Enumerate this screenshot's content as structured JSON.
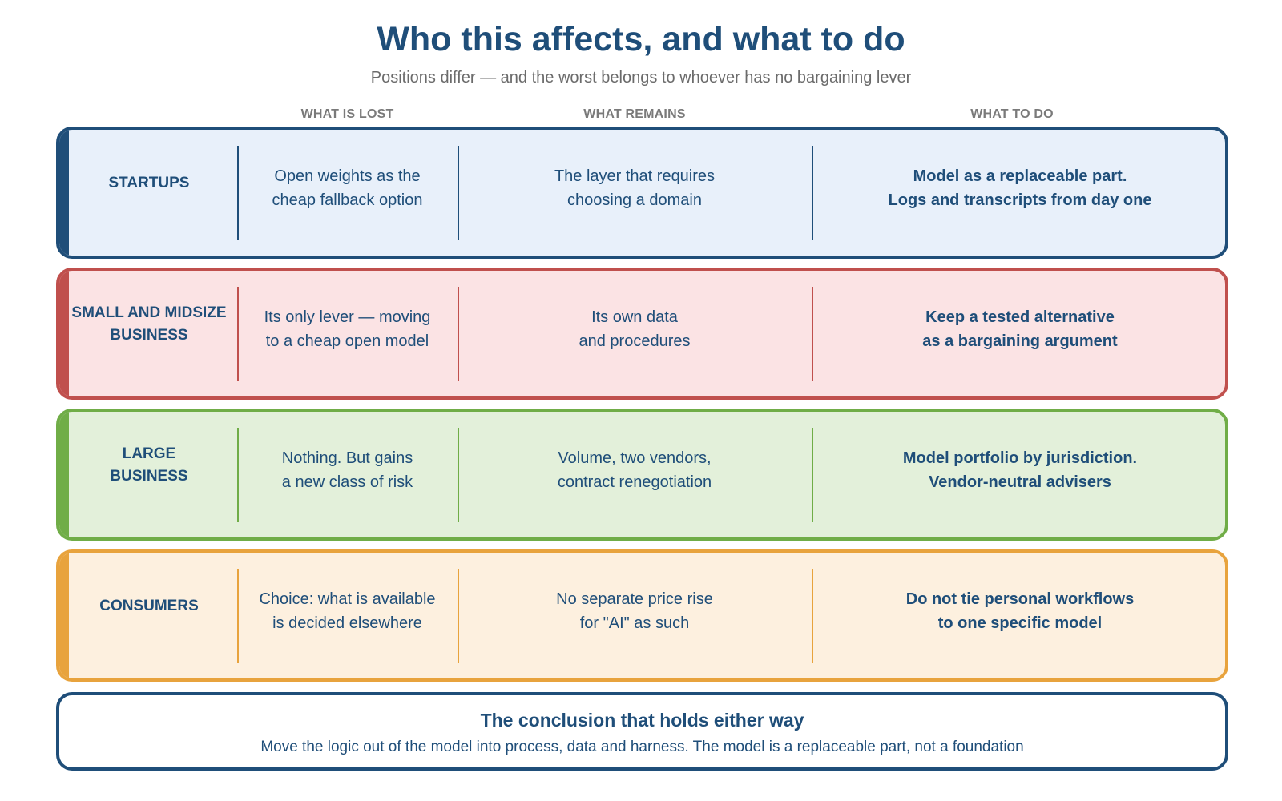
{
  "title": "Who this affects, and what to do",
  "subtitle": "Positions differ — and the worst belongs to whoever has no bargaining lever",
  "columns": {
    "lost": "WHAT IS LOST",
    "remains": "WHAT REMAINS",
    "todo": "WHAT TO DO"
  },
  "rows": [
    {
      "label": "STARTUPS",
      "lost": "Open weights as the\ncheap fallback option",
      "remains": "The layer that requires\nchoosing a domain",
      "todo": "Model as a replaceable part.\nLogs and transcripts from day one",
      "color": "#1f4e79",
      "background": "#e8f0fa"
    },
    {
      "label": "SMALL AND MIDSIZE\nBUSINESS",
      "lost": "Its only lever — moving\nto a cheap open model",
      "remains": "Its own data\nand procedures",
      "todo": "Keep a tested alternative\nas a bargaining argument",
      "color": "#c0504d",
      "background": "#fbe3e4"
    },
    {
      "label": "LARGE\nBUSINESS",
      "lost": "Nothing. But gains\na new class of risk",
      "remains": "Volume, two vendors,\ncontract renegotiation",
      "todo": "Model portfolio by jurisdiction.\nVendor-neutral advisers",
      "color": "#70ad47",
      "background": "#e3f0da"
    },
    {
      "label": "CONSUMERS",
      "lost": "Choice: what is available\nis decided elsewhere",
      "remains": "No separate price rise\nfor \"AI\" as such",
      "todo": "Do not tie personal workflows\nto one specific model",
      "color": "#e8a33d",
      "background": "#fdf0df"
    }
  ],
  "conclusion": {
    "title": "The conclusion that holds either way",
    "text": "Move the logic out of the model into process, data and harness. The model is a replaceable part, not a foundation"
  }
}
